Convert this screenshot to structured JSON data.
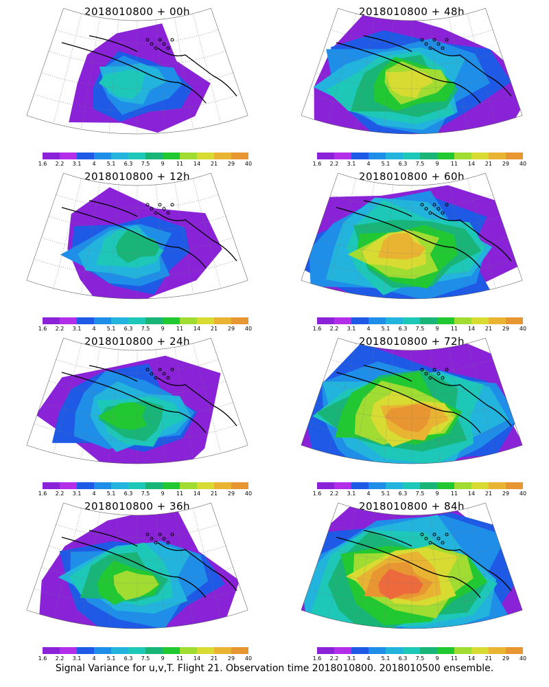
{
  "caption": "Signal Variance for u,v,T. Flight 21. Observation time 2018010800. 2018010500 ensemble.",
  "colorbar": {
    "labels": [
      "1.6",
      "2.2",
      "3.1",
      "4",
      "5.1",
      "6.3",
      "7.5",
      "9",
      "11",
      "14",
      "21",
      "29",
      "40"
    ],
    "colors": [
      "#8a22d8",
      "#b32ee8",
      "#1e5ae6",
      "#1e8ee8",
      "#22b4dc",
      "#1ec8b8",
      "#18b478",
      "#22c832",
      "#a0dc32",
      "#d8dc32",
      "#e8b432",
      "#e89632",
      "#ec6a3c",
      "#ec3264",
      "#ec1e8c"
    ]
  },
  "chart_data": [
    {
      "type": "heatmap",
      "title": "2018010800 + 00h",
      "column": "left",
      "level": 1
    },
    {
      "type": "heatmap",
      "title": "2018010800 + 48h",
      "column": "right",
      "level": 5
    },
    {
      "type": "heatmap",
      "title": "2018010800 + 12h",
      "column": "left",
      "level": 2
    },
    {
      "type": "heatmap",
      "title": "2018010800 + 60h",
      "column": "right",
      "level": 6
    },
    {
      "type": "heatmap",
      "title": "2018010800 + 24h",
      "column": "left",
      "level": 3
    },
    {
      "type": "heatmap",
      "title": "2018010800 + 72h",
      "column": "right",
      "level": 7
    },
    {
      "type": "heatmap",
      "title": "2018010800 + 36h",
      "column": "left",
      "level": 4
    },
    {
      "type": "heatmap",
      "title": "2018010800 + 84h",
      "column": "right",
      "level": 8
    }
  ]
}
